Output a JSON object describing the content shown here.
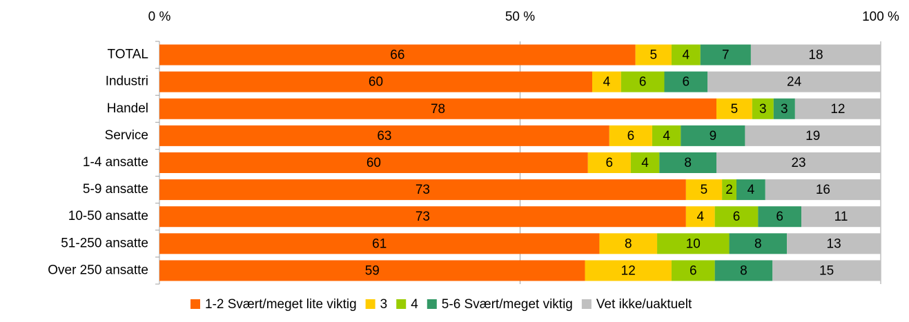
{
  "chart_data": {
    "type": "bar",
    "orientation": "horizontal",
    "stack": "percent",
    "categories": [
      "TOTAL",
      "Industri",
      "Handel",
      "Service",
      "1-4 ansatte",
      "5-9 ansatte",
      "10-50 ansatte",
      "51-250 ansatte",
      "Over 250 ansatte"
    ],
    "series": [
      {
        "name": "1-2 Svært/meget lite viktig",
        "color": "#ff6600",
        "values": [
          66,
          60,
          78,
          63,
          60,
          73,
          73,
          61,
          59
        ]
      },
      {
        "name": "3",
        "color": "#ffcc00",
        "values": [
          5,
          4,
          5,
          6,
          6,
          5,
          4,
          8,
          12
        ]
      },
      {
        "name": "4",
        "color": "#99cc00",
        "values": [
          4,
          6,
          3,
          4,
          4,
          2,
          6,
          10,
          6
        ]
      },
      {
        "name": "5-6 Svært/meget viktig",
        "color": "#339966",
        "values": [
          7,
          6,
          3,
          9,
          8,
          4,
          6,
          8,
          8
        ]
      },
      {
        "name": "Vet ikke/uaktuelt",
        "color": "#c0c0c0",
        "values": [
          18,
          24,
          12,
          19,
          23,
          16,
          11,
          13,
          15
        ]
      }
    ],
    "xlim": [
      0,
      100
    ],
    "xticks": [
      {
        "value": 0,
        "label": "0 %"
      },
      {
        "value": 50,
        "label": "50 %"
      },
      {
        "value": 100,
        "label": "100 %"
      }
    ],
    "grid": true,
    "data_labels": true,
    "legend": "bottom"
  }
}
